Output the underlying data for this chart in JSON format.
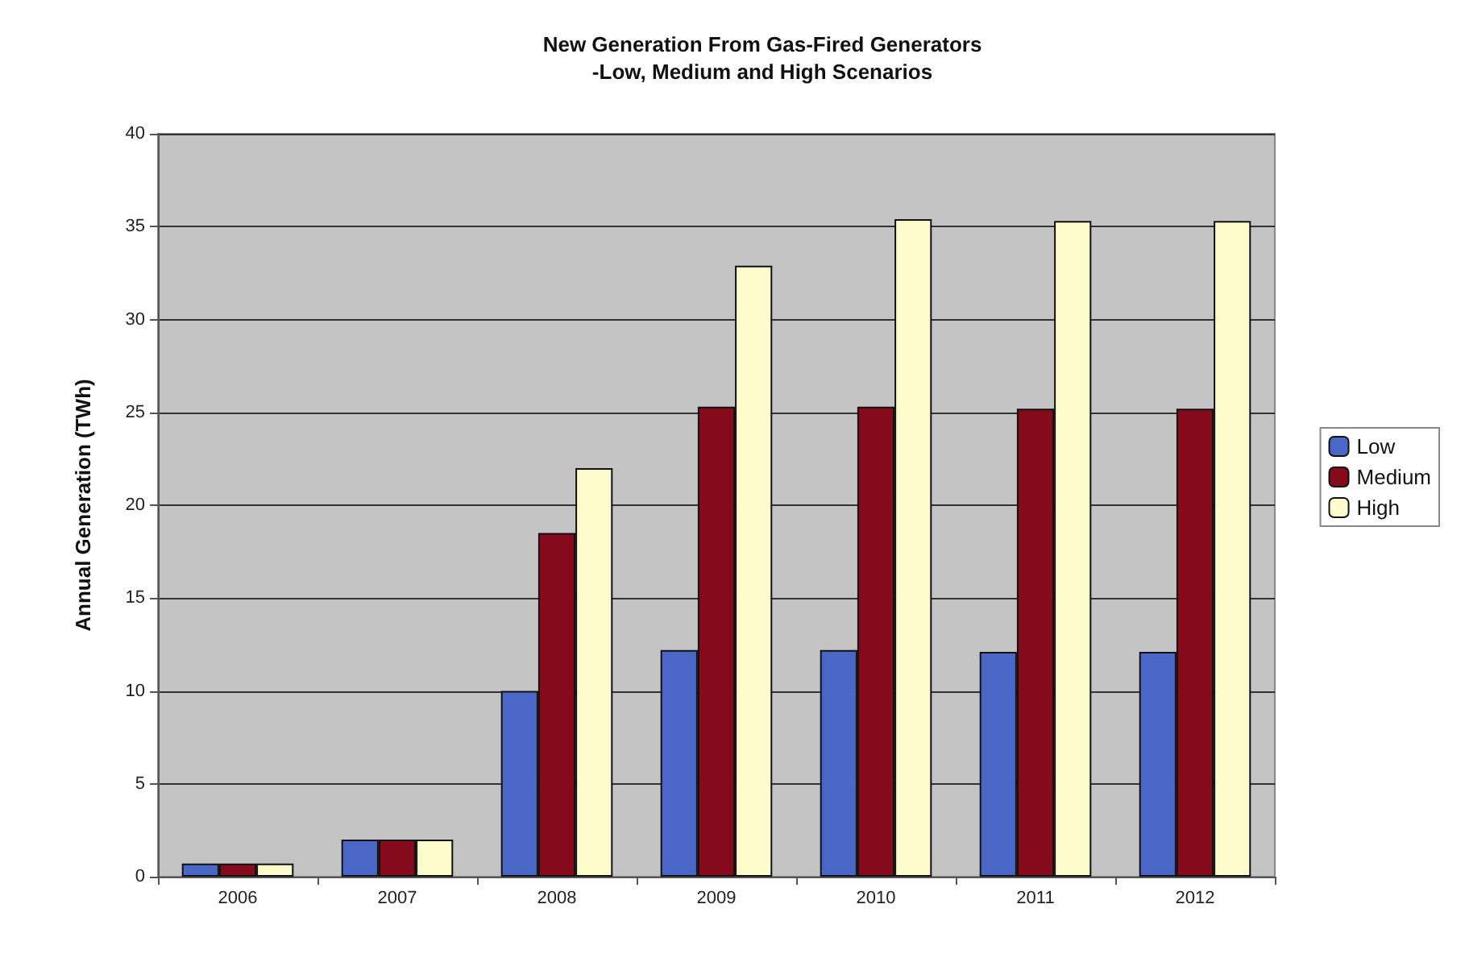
{
  "chart_data": {
    "type": "bar",
    "title": "New Generation From Gas-Fired Generators",
    "subtitle": "-Low, Medium and High Scenarios",
    "ylabel": "Annual Generation (TWh)",
    "categories": [
      "2006",
      "2007",
      "2008",
      "2009",
      "2010",
      "2011",
      "2012"
    ],
    "series": [
      {
        "name": "Low",
        "color": "#4a67c8",
        "values": [
          0.7,
          2.0,
          10.0,
          12.2,
          12.2,
          12.1,
          12.1
        ]
      },
      {
        "name": "Medium",
        "color": "#850a1c",
        "values": [
          0.7,
          2.0,
          18.5,
          25.3,
          25.3,
          25.2,
          25.2
        ]
      },
      {
        "name": "High",
        "color": "#fdfccc",
        "values": [
          0.7,
          2.0,
          22.0,
          32.9,
          35.4,
          35.3,
          35.3
        ]
      }
    ],
    "ylim": [
      0,
      40
    ],
    "yticks": [
      0,
      5,
      10,
      15,
      20,
      25,
      30,
      35,
      40
    ],
    "grid": "y",
    "legend": "right"
  }
}
